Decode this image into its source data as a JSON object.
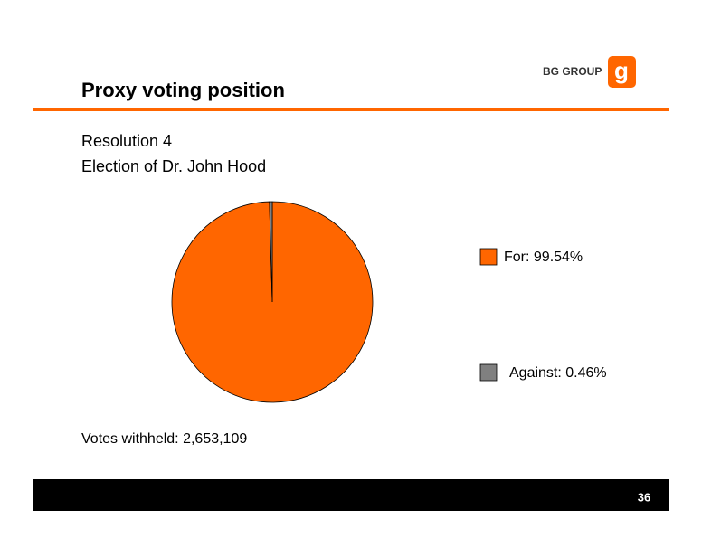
{
  "slide": {
    "title": "Proxy voting position",
    "logo": "BG GROUP",
    "line1": "Resolution 4",
    "line2": "Election of Dr. John Hood",
    "note": "Votes withheld: 2,653,109",
    "page": "36"
  },
  "chart_data": {
    "type": "pie",
    "values": [
      99.54,
      0.46
    ],
    "value_labels": [
      "For: 99.54%",
      "Against: 0.46%"
    ],
    "colors": [
      "#ff6600",
      "#808080"
    ]
  }
}
